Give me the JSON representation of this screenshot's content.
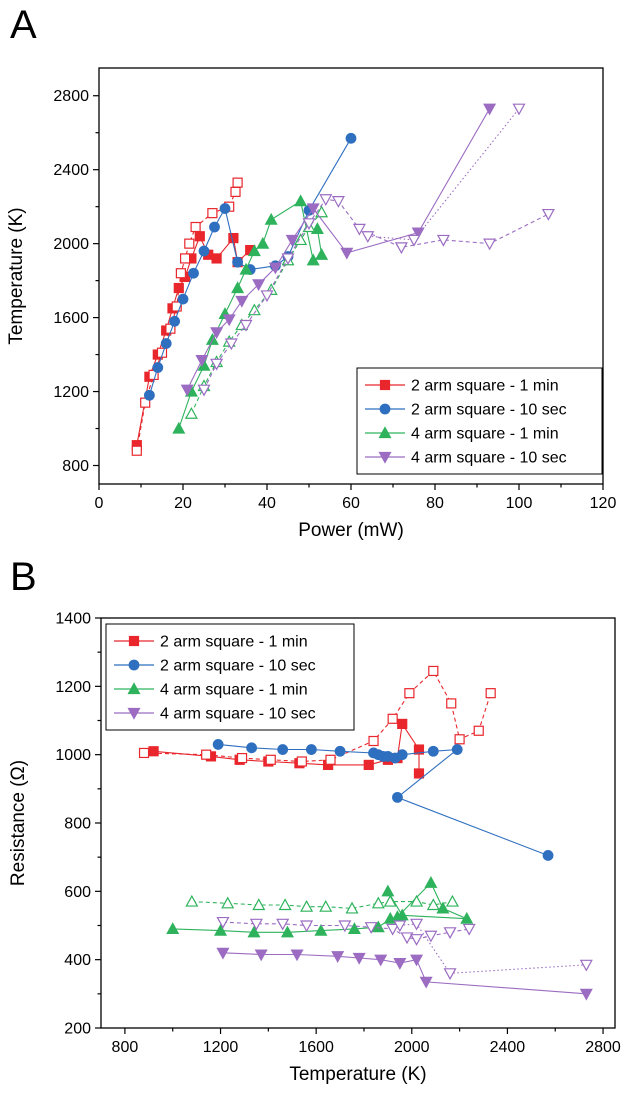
{
  "chart_data": [
    {
      "type": "line",
      "panel_label": "A",
      "xlabel": "Power (mW)",
      "ylabel": "Temperature (K)",
      "xlim": [
        0,
        120
      ],
      "ylim": [
        700,
        2950
      ],
      "xticks": [
        0,
        20,
        40,
        60,
        80,
        100,
        120
      ],
      "yticks": [
        800,
        1200,
        1600,
        2000,
        2400,
        2800
      ],
      "grid": false,
      "legend_position": "bottom-right",
      "series": [
        {
          "name": "2 arm square - 1 min",
          "color": "#e8262c",
          "marker": "square",
          "line": "solid",
          "filled": true,
          "x": [
            9,
            12,
            14,
            16,
            17.5,
            19,
            20.5,
            22,
            24,
            26,
            28,
            32,
            33,
            36
          ],
          "y": [
            910,
            1280,
            1400,
            1530,
            1650,
            1760,
            1820,
            1920,
            2040,
            1940,
            1920,
            2030,
            1900,
            1965
          ]
        },
        {
          "name": "",
          "color": "#e8262c",
          "marker": "square",
          "line": "dashed",
          "filled": false,
          "x": [
            9,
            11,
            13,
            15,
            17,
            18.5,
            19.5,
            20.5,
            21.5,
            23,
            27,
            31,
            32.5,
            33
          ],
          "y": [
            880,
            1140,
            1290,
            1410,
            1540,
            1660,
            1840,
            1920,
            2000,
            2090,
            2165,
            2200,
            2280,
            2330
          ]
        },
        {
          "name": "2 arm square - 10 sec",
          "color": "#2f6fbf",
          "marker": "circle",
          "line": "solid",
          "filled": true,
          "x": [
            12,
            14,
            16,
            18,
            20,
            22.5,
            25,
            27.5,
            30,
            33,
            36,
            42,
            45,
            50,
            60
          ],
          "y": [
            1180,
            1330,
            1460,
            1580,
            1700,
            1840,
            1960,
            2090,
            2190,
            1900,
            1860,
            1880,
            1930,
            2180,
            2570
          ]
        },
        {
          "name": "4 arm square - 1 min",
          "color": "#2eb35c",
          "marker": "triangle-up",
          "line": "solid",
          "filled": true,
          "x": [
            19,
            22,
            25,
            27,
            30,
            33,
            35,
            37,
            39,
            41,
            48,
            51,
            53,
            52
          ],
          "y": [
            1000,
            1200,
            1340,
            1480,
            1620,
            1760,
            1860,
            1960,
            2000,
            2130,
            2230,
            1910,
            1940,
            2080
          ]
        },
        {
          "name": "",
          "color": "#2eb35c",
          "marker": "triangle-up",
          "line": "dashed",
          "filled": false,
          "x": [
            22,
            25,
            28,
            31,
            34,
            37,
            41,
            45,
            48,
            50,
            53
          ],
          "y": [
            1080,
            1230,
            1360,
            1470,
            1560,
            1640,
            1750,
            1910,
            2020,
            2090,
            2170
          ]
        },
        {
          "name": "4 arm square - 10 sec",
          "color": "#9b6cc2",
          "marker": "triangle-down",
          "line": "solid",
          "filled": true,
          "x": [
            21,
            24.5,
            28,
            31,
            34,
            38,
            42,
            46,
            51,
            59,
            76,
            93
          ],
          "y": [
            1210,
            1370,
            1520,
            1590,
            1690,
            1780,
            1870,
            2020,
            2190,
            1950,
            2060,
            2730
          ]
        },
        {
          "name": "",
          "color": "#9b6cc2",
          "marker": "triangle-down",
          "line": "dashed",
          "filled": false,
          "x": [
            25,
            28,
            31.5,
            35,
            40,
            45,
            50,
            54,
            57,
            62,
            72,
            82,
            93,
            107
          ],
          "y": [
            1210,
            1350,
            1460,
            1560,
            1720,
            1920,
            2110,
            2240,
            2230,
            2080,
            1980,
            2020,
            2000,
            2160
          ]
        },
        {
          "name": "",
          "color": "#9b6cc2",
          "marker": "triangle-down",
          "line": "dotted",
          "filled": false,
          "x": [
            64,
            75,
            100
          ],
          "y": [
            2040,
            2020,
            2730
          ]
        }
      ]
    },
    {
      "type": "line",
      "panel_label": "B",
      "xlabel": "Temperature (K)",
      "ylabel": "Resistance (Ω)",
      "xlim": [
        700,
        2850
      ],
      "ylim": [
        200,
        1400
      ],
      "xticks": [
        800,
        1200,
        1600,
        2000,
        2400,
        2800
      ],
      "yticks": [
        200,
        400,
        600,
        800,
        1000,
        1200,
        1400
      ],
      "grid": false,
      "legend_position": "top-left",
      "series": [
        {
          "name": "2 arm square - 1 min",
          "color": "#e8262c",
          "marker": "square",
          "line": "solid",
          "filled": true,
          "x": [
            920,
            1160,
            1280,
            1400,
            1530,
            1650,
            1820,
            1900,
            1940,
            1960,
            2030,
            2030
          ],
          "y": [
            1010,
            995,
            985,
            980,
            975,
            970,
            970,
            985,
            990,
            1090,
            1015,
            945
          ]
        },
        {
          "name": "",
          "color": "#e8262c",
          "marker": "square",
          "line": "dashed",
          "filled": false,
          "x": [
            880,
            1140,
            1290,
            1410,
            1540,
            1660,
            1840,
            1920,
            1990,
            2090,
            2165,
            2200,
            2280,
            2330
          ],
          "y": [
            1005,
            1000,
            990,
            985,
            980,
            985,
            1040,
            1105,
            1180,
            1245,
            1150,
            1045,
            1070,
            1180
          ]
        },
        {
          "name": "2 arm square - 10 sec",
          "color": "#2f6fbf",
          "marker": "circle",
          "line": "solid",
          "filled": true,
          "x": [
            1190,
            1330,
            1460,
            1580,
            1700,
            1840,
            1860,
            1880,
            1900,
            1930,
            1960,
            2090,
            2190,
            1940,
            2570
          ],
          "y": [
            1030,
            1020,
            1015,
            1015,
            1010,
            1005,
            1000,
            995,
            995,
            990,
            1000,
            1010,
            1015,
            875,
            705
          ]
        },
        {
          "name": "4 arm square - 1 min",
          "color": "#2eb35c",
          "marker": "triangle-up",
          "line": "solid",
          "filled": true,
          "x": [
            1000,
            1200,
            1340,
            1480,
            1620,
            1760,
            1860,
            1910,
            1940,
            2080,
            2130,
            2230,
            1960,
            1900
          ],
          "y": [
            490,
            485,
            480,
            480,
            485,
            490,
            495,
            520,
            525,
            625,
            550,
            520,
            530,
            600
          ]
        },
        {
          "name": "",
          "color": "#2eb35c",
          "marker": "triangle-up",
          "line": "dashed",
          "filled": false,
          "x": [
            1080,
            1230,
            1360,
            1470,
            1560,
            1640,
            1750,
            1860,
            1910,
            2020,
            2090,
            2170
          ],
          "y": [
            570,
            565,
            560,
            560,
            555,
            555,
            550,
            565,
            570,
            570,
            560,
            570
          ]
        },
        {
          "name": "4 arm square - 10 sec",
          "color": "#9b6cc2",
          "marker": "triangle-down",
          "line": "solid",
          "filled": true,
          "x": [
            1210,
            1370,
            1520,
            1690,
            1780,
            1870,
            1950,
            2020,
            2060,
            2730
          ],
          "y": [
            420,
            415,
            415,
            410,
            405,
            400,
            390,
            400,
            335,
            300
          ]
        },
        {
          "name": "",
          "color": "#9b6cc2",
          "marker": "triangle-down",
          "line": "dashed",
          "filled": false,
          "x": [
            1210,
            1350,
            1460,
            1560,
            1720,
            1830,
            1920,
            1980,
            2020,
            2080,
            2160,
            2240
          ],
          "y": [
            510,
            505,
            505,
            500,
            500,
            495,
            490,
            465,
            460,
            470,
            480,
            490
          ]
        },
        {
          "name": "",
          "color": "#9b6cc2",
          "marker": "triangle-down",
          "line": "dotted",
          "filled": false,
          "x": [
            1950,
            2020,
            2160,
            2730
          ],
          "y": [
            500,
            505,
            360,
            385
          ]
        }
      ]
    }
  ]
}
